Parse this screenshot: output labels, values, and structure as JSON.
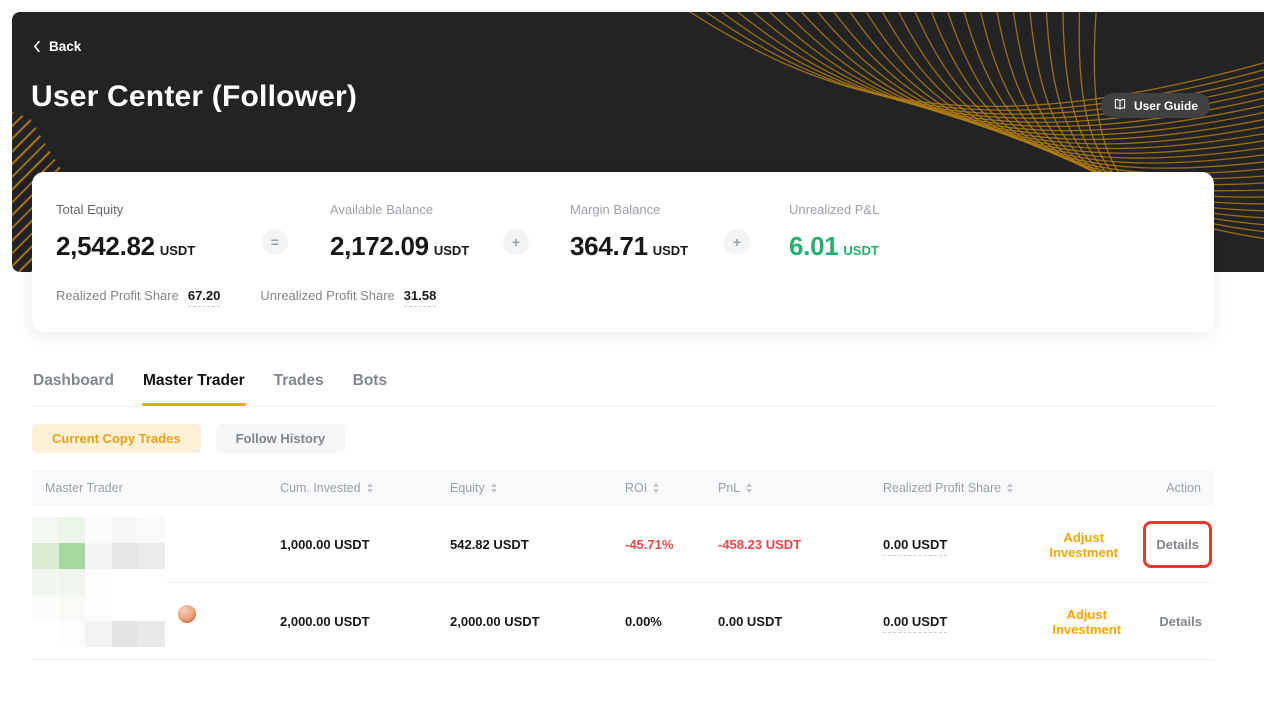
{
  "colors": {
    "accent_orange": "#f7a600",
    "green": "#20b26c",
    "red": "#ef454a",
    "annotation_red": "#e23b2e",
    "gold": "#b07c10"
  },
  "icons": {
    "back": "chevron-left-icon",
    "user_guide": "open-book-icon",
    "sort": "sort-carets-icon",
    "operators": [
      "equals",
      "plus",
      "plus"
    ]
  },
  "header": {
    "back_label": "Back",
    "title": "User Center (Follower)",
    "user_guide_label": "User Guide"
  },
  "balance_card": {
    "stats": [
      {
        "label": "Total Equity",
        "value": "2,542.82",
        "currency": "USDT"
      },
      {
        "label": "Available Balance",
        "value": "2,172.09",
        "currency": "USDT"
      },
      {
        "label": "Margin Balance",
        "value": "364.71",
        "currency": "USDT"
      },
      {
        "label": "Unrealized P&L",
        "value": "6.01",
        "currency": "USDT"
      }
    ],
    "operators": [
      "=",
      "+",
      "+"
    ],
    "profit_shares": [
      {
        "label": "Realized Profit Share",
        "value": "67.20"
      },
      {
        "label": "Unrealized Profit Share",
        "value": "31.58"
      }
    ]
  },
  "tabs": [
    {
      "label": "Dashboard",
      "active": false
    },
    {
      "label": "Master Trader",
      "active": true
    },
    {
      "label": "Trades",
      "active": false
    },
    {
      "label": "Bots",
      "active": false
    }
  ],
  "subtabs": [
    {
      "label": "Current Copy Trades",
      "active": true
    },
    {
      "label": "Follow History",
      "active": false
    }
  ],
  "table": {
    "columns": [
      {
        "label": "Master Trader",
        "sortable": false
      },
      {
        "label": "Cum. Invested",
        "sortable": true
      },
      {
        "label": "Equity",
        "sortable": true
      },
      {
        "label": "ROI",
        "sortable": true
      },
      {
        "label": "PnL",
        "sortable": true
      },
      {
        "label": "Realized Profit Share",
        "sortable": true
      },
      {
        "label": "Action",
        "sortable": false
      }
    ],
    "rows": [
      {
        "trader_name_redacted": true,
        "cum_invested": "1,000.00 USDT",
        "equity": "542.82 USDT",
        "roi": "-45.71%",
        "pnl": "-458.23 USDT",
        "roi_negative": true,
        "realized_profit_share": "0.00 USDT",
        "adjust_label": "Adjust Investment",
        "details_label": "Details",
        "details_highlighted": true,
        "redaction_tiles": [
          [
            "#f3f9f1",
            "#ecf5e9",
            "#fbfbfb",
            "#f7f7f7",
            "#f9f9f9"
          ],
          [
            "#d8ecd2",
            "#a6d79f",
            "#f4f5f4",
            "#e4e5e4",
            "#eaeaea"
          ],
          [
            "#f2f8f0",
            "#f0f6ee",
            "#fdfdfd",
            "#ffffff",
            "#ffffff"
          ]
        ]
      },
      {
        "trader_name_redacted": true,
        "cum_invested": "2,000.00 USDT",
        "equity": "2,000.00 USDT",
        "roi": "0.00%",
        "pnl": "0.00 USDT",
        "roi_negative": false,
        "realized_profit_share": "0.00 USDT",
        "adjust_label": "Adjust Investment",
        "details_label": "Details",
        "details_highlighted": false,
        "redaction_tiles": [
          [
            "#fbfdfa",
            "#f7faf5",
            "#fdfdfd",
            "#ffffff",
            "#ffffff"
          ],
          [
            "#ffffff",
            "#fdfdfd",
            "#f3f3f3",
            "#e3e3e3",
            "#e9e9e9"
          ]
        ]
      }
    ]
  }
}
